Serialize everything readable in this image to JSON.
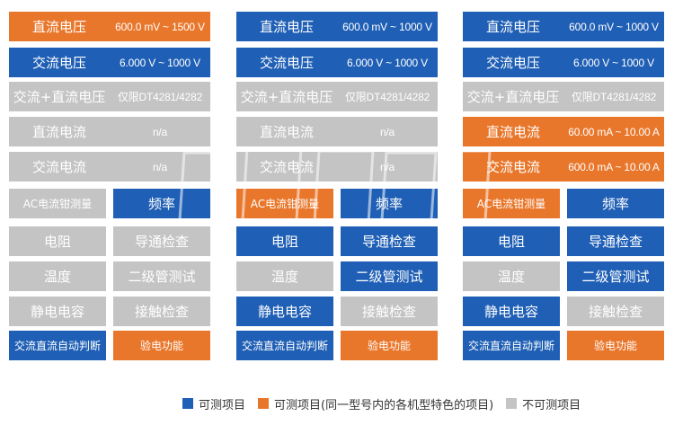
{
  "colors": {
    "testable": "#1f5fb5",
    "model_specific": "#e9772b",
    "not_testable": "#c4c4c4"
  },
  "models": [
    {
      "rows": [
        {
          "name": {
            "text": "直流电压",
            "color": "orange"
          },
          "range": {
            "text": "600.0 mV ~ 1500 V",
            "color": "orange"
          }
        },
        {
          "name": {
            "text": "交流电压",
            "color": "blue"
          },
          "range": {
            "text": "6.000 V ~ 1000 V",
            "color": "blue"
          }
        },
        {
          "name": {
            "text": "交流+直流电压",
            "color": "gray"
          },
          "range": {
            "text": "仅限DT4281/4282",
            "color": "gray"
          }
        },
        {
          "name": {
            "text": "直流电流",
            "color": "gray"
          },
          "range": {
            "text": "n/a",
            "color": "gray"
          }
        },
        {
          "name": {
            "text": "交流电流",
            "color": "gray"
          },
          "range": {
            "text": "n/a",
            "color": "gray"
          }
        }
      ],
      "features": [
        [
          {
            "text": "AC电流钳测量",
            "color": "gray"
          },
          {
            "text": "频率",
            "color": "blue"
          }
        ],
        [
          {
            "text": "电阻",
            "color": "gray"
          },
          {
            "text": "导通检查",
            "color": "gray"
          }
        ],
        [
          {
            "text": "温度",
            "color": "gray"
          },
          {
            "text": "二级管测试",
            "color": "gray"
          }
        ],
        [
          {
            "text": "静电电容",
            "color": "gray"
          },
          {
            "text": "接触检查",
            "color": "gray"
          }
        ],
        [
          {
            "text": "交流直流自动判断",
            "color": "blue"
          },
          {
            "text": "验电功能",
            "color": "orange"
          }
        ]
      ]
    },
    {
      "rows": [
        {
          "name": {
            "text": "直流电压",
            "color": "blue"
          },
          "range": {
            "text": "600.0 mV ~ 1000 V",
            "color": "blue"
          }
        },
        {
          "name": {
            "text": "交流电压",
            "color": "blue"
          },
          "range": {
            "text": "6.000 V ~ 1000 V",
            "color": "blue"
          }
        },
        {
          "name": {
            "text": "交流+直流电压",
            "color": "gray"
          },
          "range": {
            "text": "仅限DT4281/4282",
            "color": "gray"
          }
        },
        {
          "name": {
            "text": "直流电流",
            "color": "gray"
          },
          "range": {
            "text": "n/a",
            "color": "gray"
          }
        },
        {
          "name": {
            "text": "交流电流",
            "color": "gray"
          },
          "range": {
            "text": "n/a",
            "color": "gray"
          }
        }
      ],
      "features": [
        [
          {
            "text": "AC电流钳测量",
            "color": "orange"
          },
          {
            "text": "频率",
            "color": "blue"
          }
        ],
        [
          {
            "text": "电阻",
            "color": "blue"
          },
          {
            "text": "导通检查",
            "color": "blue"
          }
        ],
        [
          {
            "text": "温度",
            "color": "gray"
          },
          {
            "text": "二级管测试",
            "color": "blue"
          }
        ],
        [
          {
            "text": "静电电容",
            "color": "blue"
          },
          {
            "text": "接触检查",
            "color": "gray"
          }
        ],
        [
          {
            "text": "交流直流自动判断",
            "color": "blue"
          },
          {
            "text": "验电功能",
            "color": "orange"
          }
        ]
      ]
    },
    {
      "rows": [
        {
          "name": {
            "text": "直流电压",
            "color": "blue"
          },
          "range": {
            "text": "600.0 mV ~ 1000 V",
            "color": "blue"
          }
        },
        {
          "name": {
            "text": "交流电压",
            "color": "blue"
          },
          "range": {
            "text": "6.000 V ~ 1000 V",
            "color": "blue"
          }
        },
        {
          "name": {
            "text": "交流+直流电压",
            "color": "gray"
          },
          "range": {
            "text": "仅限DT4281/4282",
            "color": "gray"
          }
        },
        {
          "name": {
            "text": "直流电流",
            "color": "orange"
          },
          "range": {
            "text": "60.00 mA ~ 10.00 A",
            "color": "orange"
          }
        },
        {
          "name": {
            "text": "交流电流",
            "color": "orange"
          },
          "range": {
            "text": "600.0 mA ~ 10.00 A",
            "color": "orange"
          }
        }
      ],
      "features": [
        [
          {
            "text": "AC电流钳测量",
            "color": "orange"
          },
          {
            "text": "频率",
            "color": "blue"
          }
        ],
        [
          {
            "text": "电阻",
            "color": "blue"
          },
          {
            "text": "导通检查",
            "color": "blue"
          }
        ],
        [
          {
            "text": "温度",
            "color": "gray"
          },
          {
            "text": "二级管测试",
            "color": "blue"
          }
        ],
        [
          {
            "text": "静电电容",
            "color": "blue"
          },
          {
            "text": "接触检查",
            "color": "gray"
          }
        ],
        [
          {
            "text": "交流直流自动判断",
            "color": "blue"
          },
          {
            "text": "验电功能",
            "color": "orange"
          }
        ]
      ]
    }
  ],
  "legend": [
    {
      "text": "可测项目",
      "color": "blue"
    },
    {
      "text": "可测项目(同一型号内的各机型特色的项目)",
      "color": "orange"
    },
    {
      "text": "不可测项目",
      "color": "gray"
    }
  ]
}
